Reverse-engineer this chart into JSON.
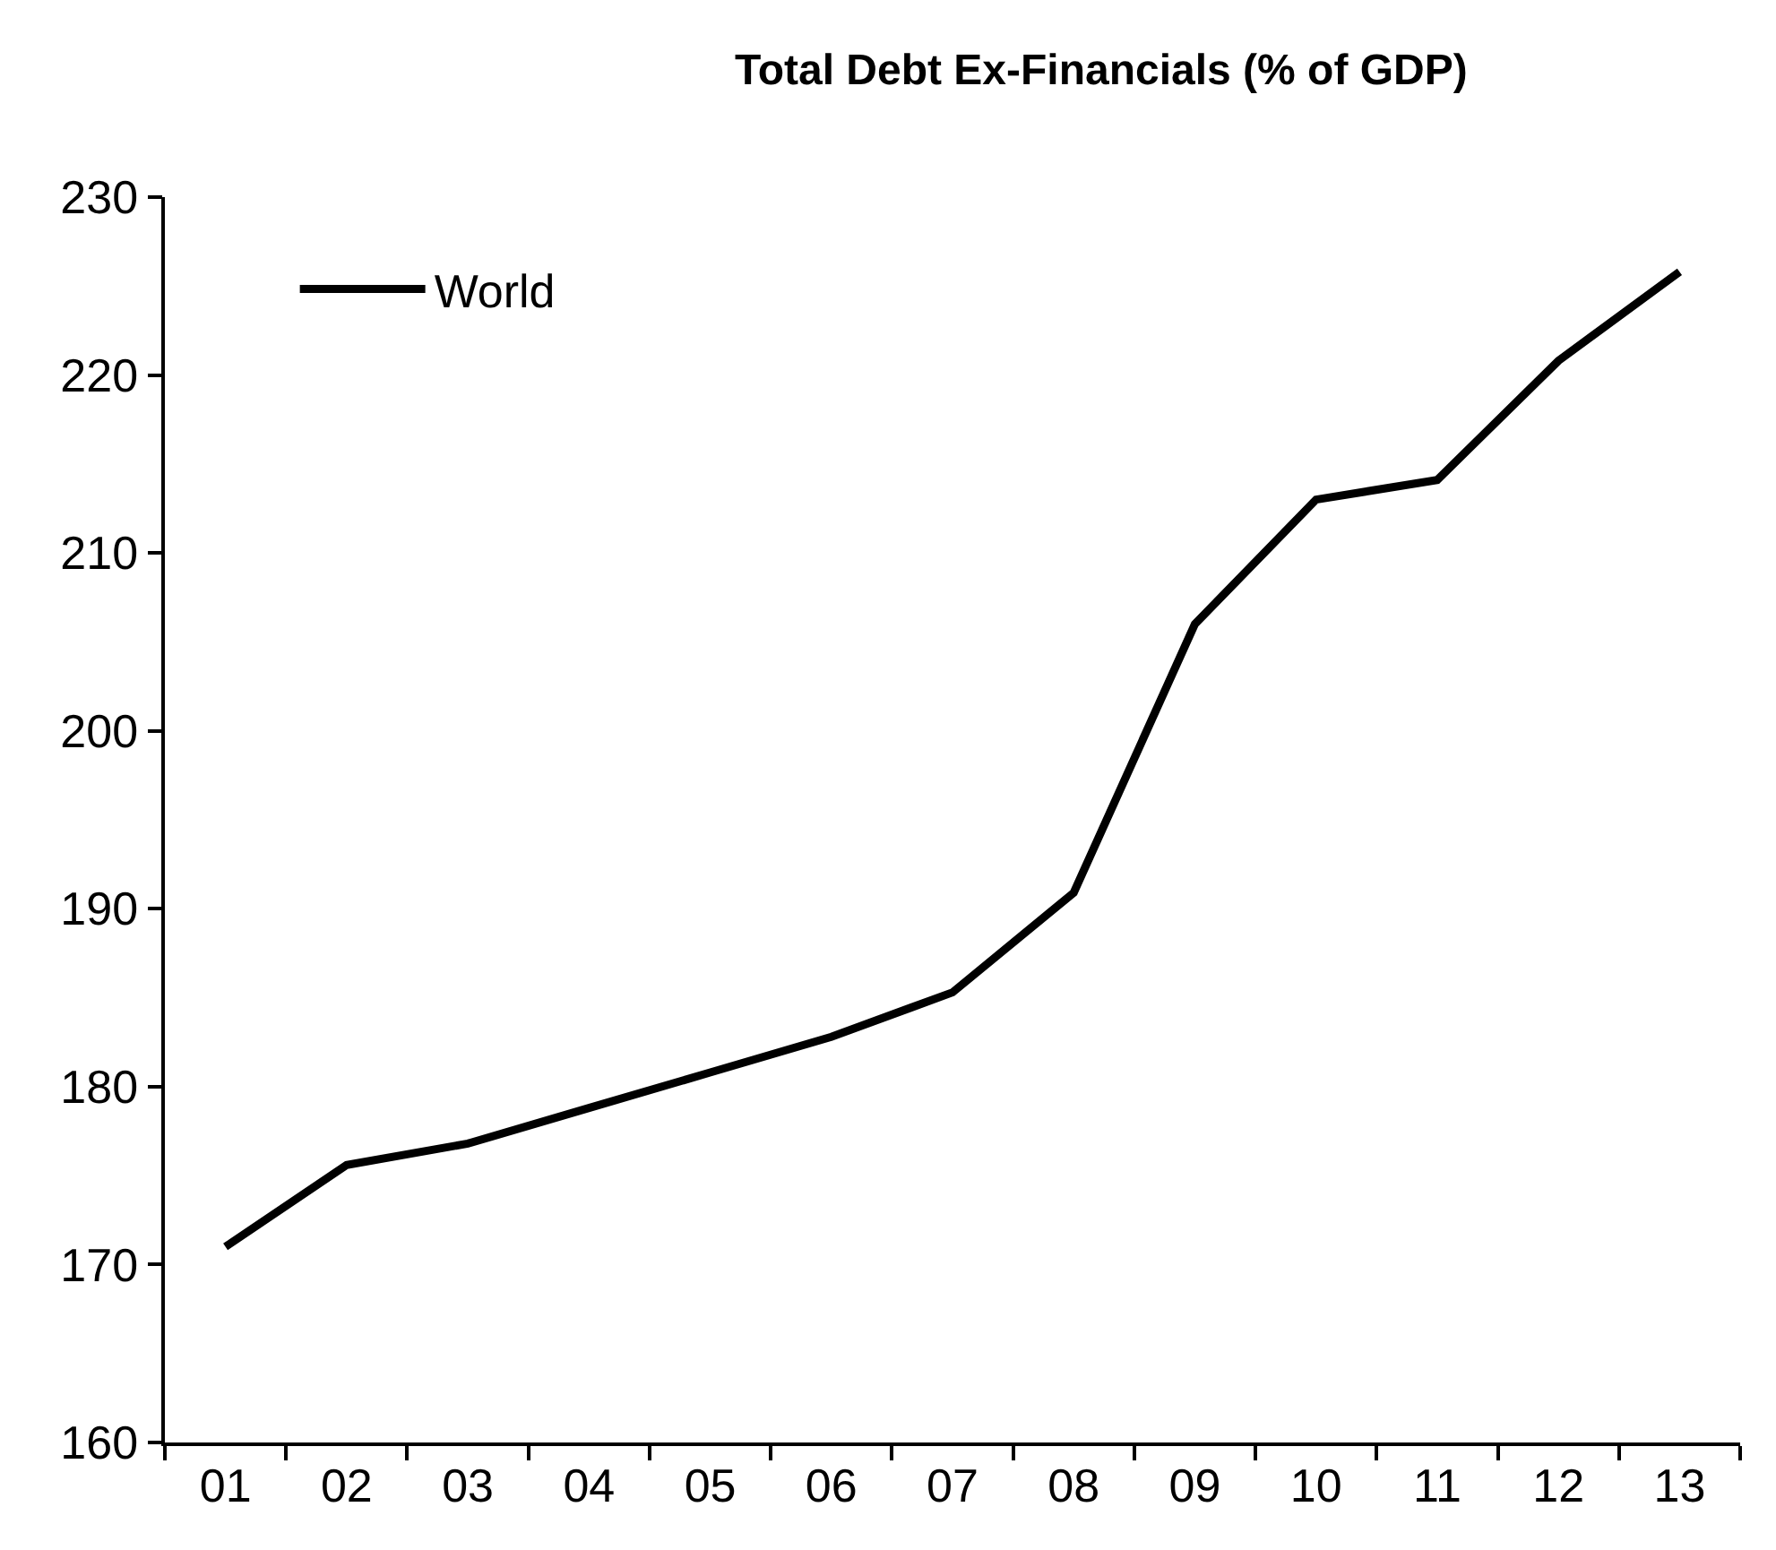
{
  "chart_data": {
    "type": "line",
    "title": "Total Debt Ex-Financials (% of GDP)",
    "categories": [
      "01",
      "02",
      "03",
      "04",
      "05",
      "06",
      "07",
      "08",
      "09",
      "10",
      "11",
      "12",
      "13"
    ],
    "series": [
      {
        "name": "World",
        "color": "#000000",
        "values": [
          171.0,
          175.6,
          176.8,
          178.8,
          180.8,
          182.8,
          185.3,
          190.9,
          206.0,
          213.0,
          214.1,
          220.8,
          225.8
        ]
      }
    ],
    "ylim": [
      160,
      230
    ],
    "yticks": [
      160,
      170,
      180,
      190,
      200,
      210,
      220,
      230
    ],
    "grid": false,
    "legend": "top left",
    "marker": "none",
    "line_style": "solid"
  }
}
